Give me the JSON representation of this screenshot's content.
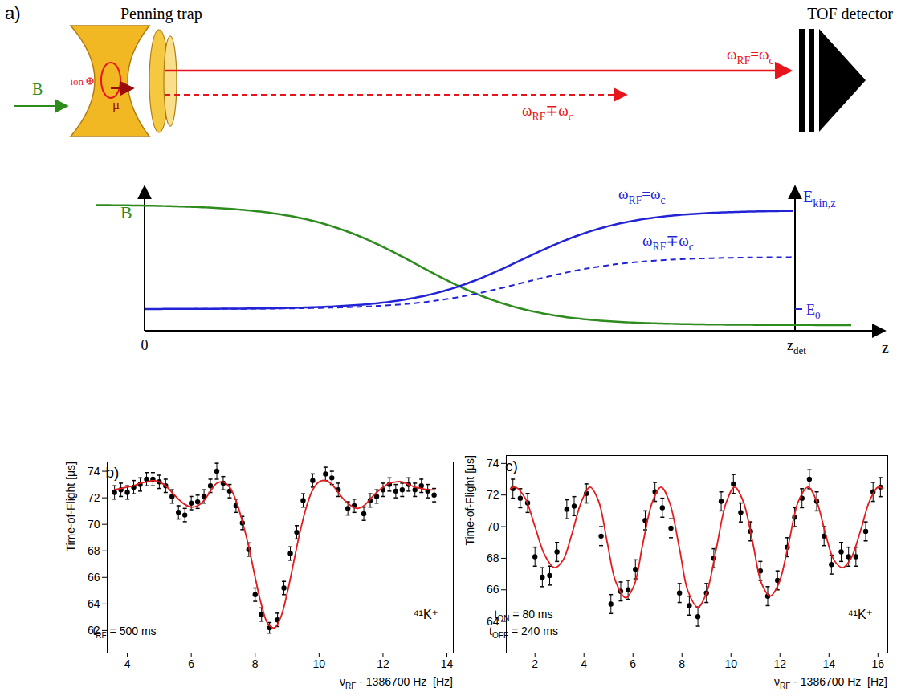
{
  "diagram": {
    "panel_label": "a)",
    "trap_title": "Penning trap",
    "detector_title": "TOF detector",
    "field_vector": "B⃗",
    "ion_label": "ion",
    "moment_label": "μ⃗",
    "resonant_label": [
      {
        "t": "ω"
      },
      {
        "sub": "RF"
      },
      {
        "t": "=ω"
      },
      {
        "sub": "c"
      }
    ],
    "off_resonant_label": [
      {
        "t": "ω"
      },
      {
        "sub": "RF"
      },
      {
        "t": "∓ω"
      },
      {
        "sub": "c"
      }
    ],
    "field_axis_label": "B",
    "energy_axis_label": [
      {
        "t": "E"
      },
      {
        "sub": "kin,z"
      }
    ],
    "energy_tick_label": [
      {
        "t": "E"
      },
      {
        "sub": "0"
      }
    ],
    "z_origin_label": "0",
    "detector_position_label": [
      {
        "t": "z"
      },
      {
        "sub": "det"
      }
    ],
    "z_axis_label": "z"
  },
  "chart_data": [
    {
      "type": "scatter",
      "panel_label": "b)",
      "x_label": [
        {
          "t": "ν"
        },
        {
          "sub": "RF"
        },
        {
          "t": " - 1386700 Hz  [Hz]"
        }
      ],
      "y_label": "Time-of-Flight [μs]",
      "annotations": [
        [
          {
            "t": "t"
          },
          {
            "sub": "RF"
          },
          {
            "t": " = 500 ms"
          }
        ],
        [
          {
            "t": "⁴¹K⁺"
          }
        ]
      ],
      "xlim": [
        3.37,
        14.2
      ],
      "xticks": [
        4,
        6,
        8,
        10,
        12,
        14
      ],
      "ylim": [
        60.3,
        74.7
      ],
      "yticks": [
        62,
        64,
        66,
        68,
        70,
        72,
        74
      ],
      "grid": false,
      "series": [
        {
          "type": "scatter",
          "color": "#000000",
          "marker": "circle",
          "x": [
            3.6,
            3.8,
            4.0,
            4.2,
            4.4,
            4.6,
            4.8,
            5.0,
            5.2,
            5.4,
            5.6,
            5.8,
            6.0,
            6.2,
            6.4,
            6.6,
            6.8,
            7.0,
            7.2,
            7.4,
            7.6,
            7.8,
            8.0,
            8.2,
            8.45,
            8.7,
            8.9,
            9.1,
            9.3,
            9.5,
            9.8,
            10.2,
            10.4,
            10.6,
            10.9,
            11.1,
            11.4,
            11.6,
            11.8,
            12.0,
            12.2,
            12.4,
            12.6,
            12.8,
            13.0,
            13.2,
            13.4,
            13.6
          ],
          "values": [
            72.4,
            72.6,
            72.4,
            72.8,
            73.0,
            73.4,
            73.4,
            73.2,
            72.9,
            72.1,
            70.9,
            70.7,
            71.6,
            71.7,
            72.1,
            72.9,
            74.0,
            73.1,
            72.5,
            71.4,
            70.1,
            68.1,
            64.7,
            63.2,
            62.2,
            62.8,
            65.2,
            67.8,
            69.4,
            71.8,
            73.3,
            73.8,
            73.5,
            72.6,
            71.2,
            71.4,
            70.8,
            71.8,
            72.1,
            72.6,
            73.0,
            72.5,
            72.6,
            73.0,
            72.6,
            72.9,
            72.5,
            72.2
          ],
          "errors": [
            0.5,
            0.5,
            0.5,
            0.5,
            0.5,
            0.5,
            0.5,
            0.5,
            0.5,
            0.5,
            0.5,
            0.5,
            0.5,
            0.5,
            0.5,
            0.5,
            0.6,
            0.5,
            0.5,
            0.5,
            0.5,
            0.5,
            0.5,
            0.5,
            0.4,
            0.5,
            0.5,
            0.5,
            0.5,
            0.5,
            0.5,
            0.5,
            0.5,
            0.5,
            0.5,
            0.5,
            0.5,
            0.5,
            0.5,
            0.5,
            0.5,
            0.5,
            0.5,
            0.5,
            0.5,
            0.5,
            0.5,
            0.5
          ]
        },
        {
          "type": "line",
          "color": "#e41a1c",
          "line_style": "solid",
          "x": [
            3.6,
            3.8,
            4.0,
            4.2,
            4.4,
            4.6,
            4.8,
            5.0,
            5.2,
            5.4,
            5.6,
            5.8,
            6.0,
            6.2,
            6.4,
            6.6,
            6.8,
            7.0,
            7.2,
            7.4,
            7.6,
            7.8,
            8.0,
            8.2,
            8.4,
            8.6,
            8.8,
            9.0,
            9.2,
            9.4,
            9.6,
            9.8,
            10.0,
            10.2,
            10.4,
            10.6,
            10.8,
            11.0,
            11.2,
            11.4,
            11.6,
            11.8,
            12.0,
            12.2,
            12.4,
            12.6,
            12.8,
            13.0,
            13.2,
            13.4,
            13.6
          ],
          "values": [
            72.6,
            72.7,
            72.8,
            72.9,
            73.1,
            73.2,
            73.3,
            73.2,
            72.9,
            72.4,
            71.9,
            71.5,
            71.3,
            71.4,
            71.8,
            72.5,
            73.1,
            73.2,
            72.8,
            71.8,
            70.2,
            68.3,
            66.0,
            63.9,
            62.5,
            62.2,
            63.0,
            64.8,
            67.1,
            69.4,
            71.3,
            72.6,
            73.2,
            73.3,
            73.0,
            72.4,
            71.8,
            71.4,
            71.2,
            71.4,
            71.9,
            72.4,
            72.8,
            73.1,
            73.2,
            73.2,
            73.0,
            72.8,
            72.7,
            72.6,
            72.6
          ]
        }
      ]
    },
    {
      "type": "scatter",
      "panel_label": "c)",
      "x_label": [
        {
          "t": "ν"
        },
        {
          "sub": "RF"
        },
        {
          "t": " - 1386700 Hz  [Hz]"
        }
      ],
      "y_label": "Time-of-Flight [μs]",
      "annotations": [
        [
          {
            "t": "t"
          },
          {
            "sub": "ON"
          },
          {
            "t": " = 80 ms"
          }
        ],
        [
          {
            "t": "t"
          },
          {
            "sub": "OFF"
          },
          {
            "t": " = 240 ms"
          }
        ],
        [
          {
            "t": "⁴¹K⁺"
          }
        ]
      ],
      "xlim": [
        0.83,
        16.4
      ],
      "xticks": [
        2,
        4,
        6,
        8,
        10,
        12,
        14,
        16
      ],
      "ylim": [
        62.0,
        74.5
      ],
      "yticks": [
        64,
        66,
        68,
        70,
        72,
        74
      ],
      "grid": false,
      "series": [
        {
          "type": "scatter",
          "color": "#000000",
          "marker": "circle",
          "x": [
            1.1,
            1.4,
            1.7,
            2.0,
            2.3,
            2.6,
            2.9,
            3.3,
            3.6,
            4.1,
            4.7,
            5.1,
            5.5,
            5.8,
            6.1,
            6.5,
            6.9,
            7.2,
            7.55,
            7.9,
            8.3,
            8.65,
            9.0,
            9.3,
            9.6,
            10.1,
            10.4,
            10.8,
            11.2,
            11.5,
            11.9,
            12.3,
            12.6,
            12.9,
            13.2,
            13.5,
            13.8,
            14.1,
            14.5,
            14.8,
            15.1,
            15.5,
            15.8,
            16.1
          ],
          "values": [
            72.4,
            71.8,
            71.5,
            68.1,
            66.8,
            66.9,
            68.4,
            71.1,
            71.3,
            72.1,
            69.4,
            65.1,
            65.9,
            66.0,
            67.3,
            70.4,
            72.2,
            71.2,
            69.9,
            65.8,
            65.0,
            64.3,
            65.8,
            68.0,
            71.6,
            72.7,
            70.9,
            69.7,
            67.2,
            65.6,
            66.6,
            68.7,
            70.6,
            71.8,
            73.0,
            71.6,
            69.4,
            67.6,
            68.4,
            68.1,
            68.1,
            69.7,
            72.2,
            72.5
          ],
          "errors": [
            0.6,
            0.6,
            0.6,
            0.6,
            0.6,
            0.6,
            0.6,
            0.6,
            0.6,
            0.6,
            0.6,
            0.6,
            0.6,
            0.6,
            0.6,
            0.6,
            0.6,
            0.6,
            0.6,
            0.6,
            0.6,
            0.6,
            0.6,
            0.6,
            0.6,
            0.6,
            0.6,
            0.6,
            0.6,
            0.6,
            0.6,
            0.6,
            0.6,
            0.6,
            0.6,
            0.6,
            0.6,
            0.6,
            0.6,
            0.6,
            0.6,
            0.6,
            0.6,
            0.6
          ]
        },
        {
          "type": "line",
          "color": "#e41a1c",
          "line_style": "solid",
          "x": [
            1.0,
            1.2,
            1.6,
            2.0,
            2.4,
            2.8,
            3.15,
            3.5,
            3.9,
            4.25,
            4.6,
            4.95,
            5.3,
            5.7,
            6.05,
            6.4,
            6.8,
            7.15,
            7.5,
            7.9,
            8.25,
            8.65,
            9.0,
            9.4,
            9.8,
            10.15,
            10.5,
            10.9,
            11.25,
            11.6,
            11.95,
            12.35,
            12.75,
            13.15,
            13.5,
            13.85,
            14.2,
            14.55,
            14.9,
            15.3,
            15.65,
            16.0,
            16.2
          ],
          "values": [
            72.4,
            72.5,
            71.8,
            70.0,
            68.2,
            67.4,
            67.9,
            69.5,
            71.6,
            72.5,
            71.6,
            69.0,
            66.5,
            65.5,
            66.3,
            68.9,
            71.6,
            72.5,
            71.5,
            68.6,
            65.9,
            64.9,
            65.8,
            68.6,
            71.5,
            72.5,
            71.6,
            68.9,
            66.4,
            65.6,
            66.4,
            68.9,
            71.6,
            72.5,
            71.6,
            69.6,
            67.9,
            67.4,
            68.0,
            69.8,
            71.6,
            72.5,
            72.4
          ]
        }
      ]
    }
  ]
}
